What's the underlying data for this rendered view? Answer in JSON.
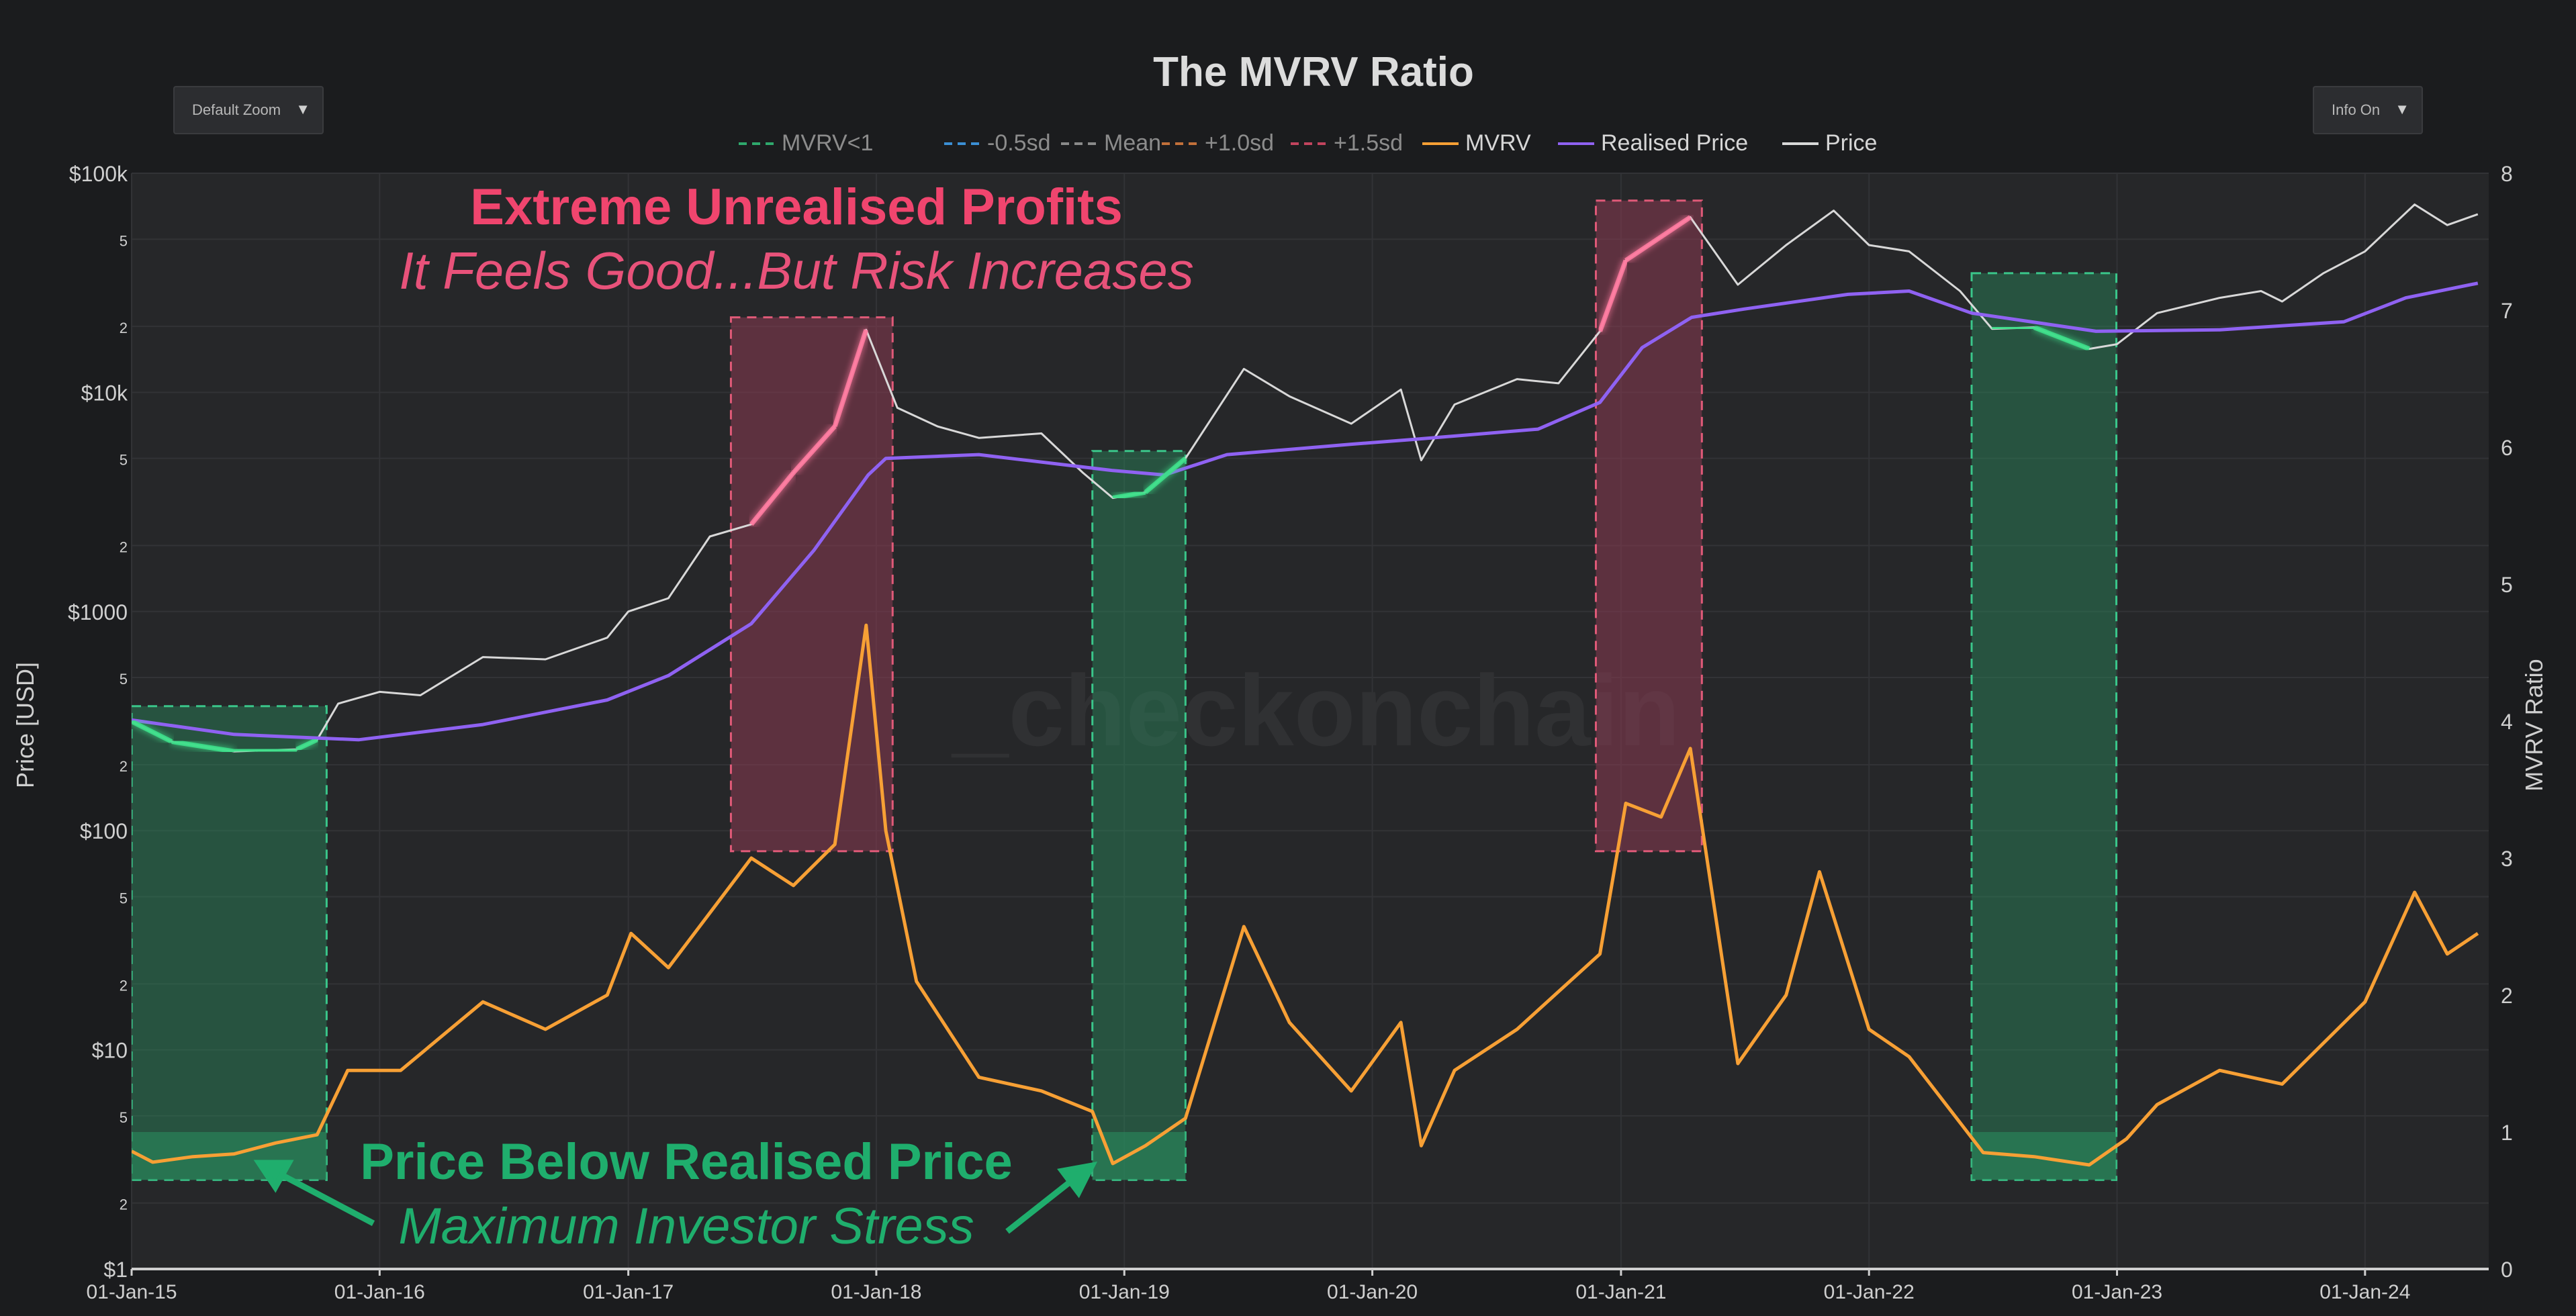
{
  "header": {
    "title": "The MVRV Ratio"
  },
  "controls": {
    "zoom_label": "Default Zoom",
    "info_label": "Info On",
    "dropdown_glyph": "▼"
  },
  "watermark": "_checkonchain",
  "colors": {
    "mvrv": "#f7a035",
    "realised": "#8f62f2",
    "price": "#d8d8d8",
    "profit_zone": "#8a3a52",
    "profit_zone_border": "#e05a78",
    "stress_zone": "#2a8a5e",
    "stress_zone_border": "#3ac68a",
    "profit_text": "#f0456e",
    "stress_text": "#1fae6d",
    "low_glow": "#3de08a",
    "mid_glow": "#4aa8ff",
    "high_glow": "#ff7aa0"
  },
  "chart_data": {
    "type": "line",
    "title": "The MVRV Ratio",
    "legend": [
      "MVRV<1",
      "-0.5sd",
      "Mean",
      "+1.0sd",
      "+1.5sd",
      "MVRV",
      "Realised Price",
      "Price"
    ],
    "legend_placement": "top-center",
    "y_left": {
      "label": "Price [USD]",
      "scale": "log",
      "range": [
        1,
        100000
      ],
      "ticks": [
        "$1",
        "2",
        "5",
        "$10",
        "2",
        "5",
        "$100",
        "2",
        "5",
        "$1000",
        "2",
        "5",
        "$10k",
        "2",
        "5",
        "$100k"
      ]
    },
    "y_right": {
      "label": "MVRV Ratio",
      "range": [
        0,
        8
      ],
      "ticks": [
        "0",
        "1",
        "2",
        "3",
        "4",
        "5",
        "6",
        "7",
        "8"
      ]
    },
    "x": {
      "range": [
        "2015-01-01",
        "2024-07-01"
      ],
      "ticks": [
        "01-Jan-15",
        "01-Jan-16",
        "01-Jan-17",
        "01-Jan-18",
        "01-Jan-19",
        "01-Jan-20",
        "01-Jan-21",
        "01-Jan-22",
        "01-Jan-23",
        "01-Jan-24"
      ]
    },
    "grid": true,
    "series": [
      {
        "name": "Price",
        "axis": "left",
        "points": [
          [
            "2015-01-01",
            315
          ],
          [
            "2015-03-01",
            255
          ],
          [
            "2015-06-01",
            230
          ],
          [
            "2015-09-01",
            235
          ],
          [
            "2015-10-01",
            260
          ],
          [
            "2015-11-01",
            380
          ],
          [
            "2016-01-01",
            430
          ],
          [
            "2016-03-01",
            415
          ],
          [
            "2016-06-01",
            620
          ],
          [
            "2016-09-01",
            605
          ],
          [
            "2016-12-01",
            760
          ],
          [
            "2017-01-01",
            1000
          ],
          [
            "2017-03-01",
            1150
          ],
          [
            "2017-05-01",
            2200
          ],
          [
            "2017-07-01",
            2500
          ],
          [
            "2017-09-01",
            4300
          ],
          [
            "2017-11-01",
            7000
          ],
          [
            "2017-12-17",
            19300
          ],
          [
            "2018-02-01",
            8500
          ],
          [
            "2018-04-01",
            7000
          ],
          [
            "2018-06-01",
            6200
          ],
          [
            "2018-09-01",
            6500
          ],
          [
            "2018-11-01",
            4300
          ],
          [
            "2018-12-15",
            3300
          ],
          [
            "2019-02-01",
            3500
          ],
          [
            "2019-04-01",
            5000
          ],
          [
            "2019-06-26",
            12800
          ],
          [
            "2019-09-01",
            9600
          ],
          [
            "2019-12-01",
            7200
          ],
          [
            "2020-02-12",
            10300
          ],
          [
            "2020-03-13",
            4900
          ],
          [
            "2020-05-01",
            8800
          ],
          [
            "2020-08-01",
            11500
          ],
          [
            "2020-10-01",
            11000
          ],
          [
            "2020-12-01",
            19000
          ],
          [
            "2021-01-08",
            40000
          ],
          [
            "2021-04-13",
            63000
          ],
          [
            "2021-06-22",
            31000
          ],
          [
            "2021-09-01",
            47000
          ],
          [
            "2021-11-10",
            67500
          ],
          [
            "2022-01-01",
            47000
          ],
          [
            "2022-03-01",
            44000
          ],
          [
            "2022-05-15",
            29000
          ],
          [
            "2022-07-01",
            19500
          ],
          [
            "2022-09-01",
            19800
          ],
          [
            "2022-11-21",
            15800
          ],
          [
            "2023-01-01",
            16600
          ],
          [
            "2023-03-01",
            23000
          ],
          [
            "2023-06-01",
            27000
          ],
          [
            "2023-08-01",
            29000
          ],
          [
            "2023-09-01",
            26000
          ],
          [
            "2023-11-01",
            35000
          ],
          [
            "2024-01-01",
            44000
          ],
          [
            "2024-03-14",
            72000
          ],
          [
            "2024-05-01",
            58000
          ],
          [
            "2024-06-15",
            65000
          ]
        ]
      },
      {
        "name": "Realised Price",
        "axis": "left",
        "points": [
          [
            "2015-01-01",
            320
          ],
          [
            "2015-06-01",
            275
          ],
          [
            "2015-12-01",
            260
          ],
          [
            "2016-06-01",
            305
          ],
          [
            "2016-12-01",
            395
          ],
          [
            "2017-03-01",
            510
          ],
          [
            "2017-07-01",
            880
          ],
          [
            "2017-10-01",
            1900
          ],
          [
            "2017-12-20",
            4200
          ],
          [
            "2018-01-15",
            5000
          ],
          [
            "2018-06-01",
            5200
          ],
          [
            "2018-12-15",
            4400
          ],
          [
            "2019-03-01",
            4200
          ],
          [
            "2019-06-01",
            5200
          ],
          [
            "2019-12-01",
            5800
          ],
          [
            "2020-03-01",
            6100
          ],
          [
            "2020-09-01",
            6800
          ],
          [
            "2020-12-01",
            9000
          ],
          [
            "2021-02-01",
            16000
          ],
          [
            "2021-04-15",
            22000
          ],
          [
            "2021-07-01",
            24000
          ],
          [
            "2021-12-01",
            28000
          ],
          [
            "2022-03-01",
            29000
          ],
          [
            "2022-06-01",
            23000
          ],
          [
            "2022-12-01",
            19000
          ],
          [
            "2023-06-01",
            19300
          ],
          [
            "2023-12-01",
            21000
          ],
          [
            "2024-03-01",
            27000
          ],
          [
            "2024-06-15",
            31500
          ]
        ]
      },
      {
        "name": "MVRV",
        "axis": "right",
        "points": [
          [
            "2015-01-01",
            0.86
          ],
          [
            "2015-02-01",
            0.78
          ],
          [
            "2015-04-01",
            0.82
          ],
          [
            "2015-06-01",
            0.84
          ],
          [
            "2015-08-01",
            0.92
          ],
          [
            "2015-10-01",
            0.98
          ],
          [
            "2015-11-15",
            1.45
          ],
          [
            "2016-02-01",
            1.45
          ],
          [
            "2016-06-01",
            1.95
          ],
          [
            "2016-09-01",
            1.75
          ],
          [
            "2016-12-01",
            2.0
          ],
          [
            "2017-01-05",
            2.45
          ],
          [
            "2017-03-01",
            2.2
          ],
          [
            "2017-05-01",
            2.6
          ],
          [
            "2017-07-01",
            3.0
          ],
          [
            "2017-09-01",
            2.8
          ],
          [
            "2017-11-01",
            3.1
          ],
          [
            "2017-12-17",
            4.7
          ],
          [
            "2018-01-15",
            3.2
          ],
          [
            "2018-03-01",
            2.1
          ],
          [
            "2018-06-01",
            1.4
          ],
          [
            "2018-09-01",
            1.3
          ],
          [
            "2018-11-15",
            1.15
          ],
          [
            "2018-12-15",
            0.77
          ],
          [
            "2019-02-01",
            0.9
          ],
          [
            "2019-04-01",
            1.1
          ],
          [
            "2019-06-26",
            2.5
          ],
          [
            "2019-09-01",
            1.8
          ],
          [
            "2019-12-01",
            1.3
          ],
          [
            "2020-02-12",
            1.8
          ],
          [
            "2020-03-13",
            0.9
          ],
          [
            "2020-05-01",
            1.45
          ],
          [
            "2020-08-01",
            1.75
          ],
          [
            "2020-12-01",
            2.3
          ],
          [
            "2021-01-08",
            3.4
          ],
          [
            "2021-03-01",
            3.3
          ],
          [
            "2021-04-13",
            3.8
          ],
          [
            "2021-06-22",
            1.5
          ],
          [
            "2021-09-01",
            2.0
          ],
          [
            "2021-10-20",
            2.9
          ],
          [
            "2022-01-01",
            1.75
          ],
          [
            "2022-03-01",
            1.55
          ],
          [
            "2022-06-18",
            0.85
          ],
          [
            "2022-09-01",
            0.82
          ],
          [
            "2022-11-21",
            0.76
          ],
          [
            "2023-01-15",
            0.95
          ],
          [
            "2023-03-01",
            1.2
          ],
          [
            "2023-06-01",
            1.45
          ],
          [
            "2023-09-01",
            1.35
          ],
          [
            "2023-11-01",
            1.65
          ],
          [
            "2024-01-01",
            1.95
          ],
          [
            "2024-03-14",
            2.75
          ],
          [
            "2024-05-01",
            2.3
          ],
          [
            "2024-06-15",
            2.45
          ]
        ]
      }
    ],
    "zones": [
      {
        "kind": "stress",
        "from": "2015-01-01",
        "to": "2015-10-15"
      },
      {
        "kind": "profit",
        "from": "2017-06-01",
        "to": "2018-01-25"
      },
      {
        "kind": "stress",
        "from": "2018-11-15",
        "to": "2019-04-01"
      },
      {
        "kind": "profit",
        "from": "2020-11-25",
        "to": "2021-04-30"
      },
      {
        "kind": "stress",
        "from": "2022-06-01",
        "to": "2022-12-31"
      }
    ],
    "annotations": [
      {
        "text": "Extreme Unrealised Profits",
        "style": "profit-bold"
      },
      {
        "text": "It Feels Good...But Risk Increases",
        "style": "profit-italic"
      },
      {
        "text": "Price Below Realised Price",
        "style": "stress-bold"
      },
      {
        "text": "Maximum Investor Stress",
        "style": "stress-italic"
      }
    ]
  }
}
